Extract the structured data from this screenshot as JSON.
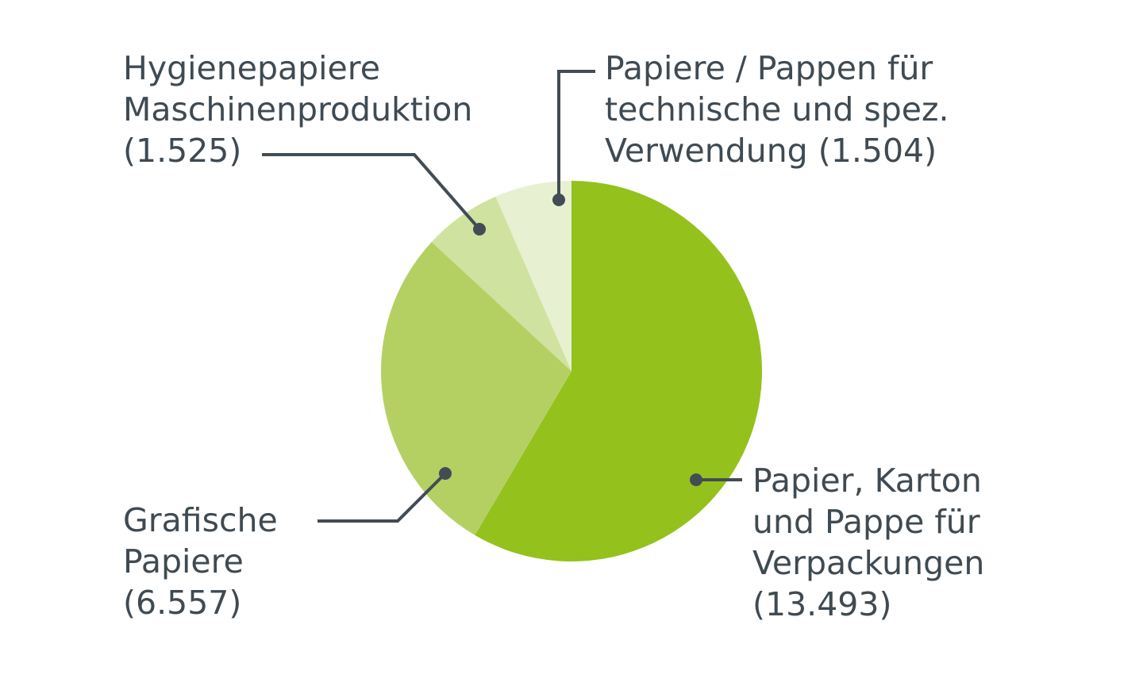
{
  "chart_data": {
    "type": "pie",
    "title": "",
    "start_angle_deg": 0,
    "direction": "clockwise",
    "slices": [
      {
        "key": "packaging",
        "label_lines": [
          "Papier, Karton",
          "und Pappe für",
          "Verpackungen",
          "(13.493)"
        ],
        "value": 13493,
        "color": "#94c11c"
      },
      {
        "key": "graphic",
        "label_lines": [
          "Grafische",
          "Papiere",
          "(6.557)"
        ],
        "value": 6557,
        "color": "#b4d063"
      },
      {
        "key": "hygiene",
        "label_lines": [
          "Hygienepapiere",
          "Maschinenproduktion",
          "(1.525)"
        ],
        "value": 1525,
        "color": "#d0e29f"
      },
      {
        "key": "technical",
        "label_lines": [
          "Papiere / Pappen für",
          "technische und spez.",
          "Verwendung (1.504)"
        ],
        "value": 1504,
        "color": "#e7f0d1"
      }
    ],
    "leader_line_color": "#424c54"
  }
}
